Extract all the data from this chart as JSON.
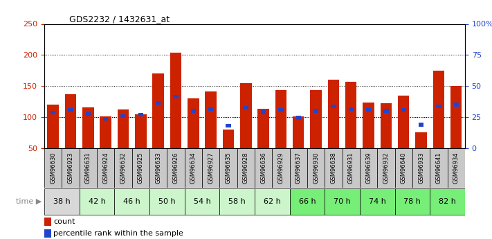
{
  "title": "GDS2232 / 1432631_at",
  "samples": [
    "GSM96630",
    "GSM96923",
    "GSM96631",
    "GSM96924",
    "GSM96632",
    "GSM96925",
    "GSM96633",
    "GSM96926",
    "GSM96634",
    "GSM96927",
    "GSM96635",
    "GSM96928",
    "GSM96636",
    "GSM96929",
    "GSM96637",
    "GSM96930",
    "GSM96638",
    "GSM96931",
    "GSM96639",
    "GSM96932",
    "GSM96640",
    "GSM96933",
    "GSM96641",
    "GSM96934"
  ],
  "count_values": [
    120,
    137,
    116,
    101,
    112,
    105,
    170,
    204,
    130,
    141,
    80,
    155,
    113,
    144,
    101,
    143,
    160,
    157,
    123,
    122,
    135,
    75,
    175,
    150
  ],
  "percentile_values": [
    107,
    112,
    105,
    97,
    102,
    104,
    123,
    133,
    110,
    113,
    86,
    115,
    108,
    112,
    99,
    110,
    117,
    113,
    112,
    110,
    112,
    88,
    117,
    120
  ],
  "time_groups": [
    {
      "label": "38 h",
      "indices": [
        0,
        1
      ],
      "color": "#d8d8d8"
    },
    {
      "label": "42 h",
      "indices": [
        2,
        3
      ],
      "color": "#ccf5cc"
    },
    {
      "label": "46 h",
      "indices": [
        4,
        5
      ],
      "color": "#ccf5cc"
    },
    {
      "label": "50 h",
      "indices": [
        6,
        7
      ],
      "color": "#ccf5cc"
    },
    {
      "label": "54 h",
      "indices": [
        8,
        9
      ],
      "color": "#ccf5cc"
    },
    {
      "label": "58 h",
      "indices": [
        10,
        11
      ],
      "color": "#ccf5cc"
    },
    {
      "label": "62 h",
      "indices": [
        12,
        13
      ],
      "color": "#ccf5cc"
    },
    {
      "label": "66 h",
      "indices": [
        14,
        15
      ],
      "color": "#77ee77"
    },
    {
      "label": "70 h",
      "indices": [
        16,
        17
      ],
      "color": "#77ee77"
    },
    {
      "label": "74 h",
      "indices": [
        18,
        19
      ],
      "color": "#77ee77"
    },
    {
      "label": "78 h",
      "indices": [
        20,
        21
      ],
      "color": "#77ee77"
    },
    {
      "label": "82 h",
      "indices": [
        22,
        23
      ],
      "color": "#77ee77"
    }
  ],
  "sample_row_color": "#c8c8c8",
  "bar_color": "#cc2200",
  "percentile_color": "#2244cc",
  "ylim_left": [
    50,
    250
  ],
  "ylim_right": [
    0,
    100
  ],
  "yticks_left": [
    50,
    100,
    150,
    200,
    250
  ],
  "yticks_right": [
    0,
    25,
    50,
    75,
    100
  ],
  "ytick_labels_right": [
    "0",
    "25",
    "50",
    "75",
    "100%"
  ],
  "grid_values": [
    100,
    150,
    200
  ],
  "background_color": "#ffffff",
  "plot_bg_color": "#ffffff"
}
